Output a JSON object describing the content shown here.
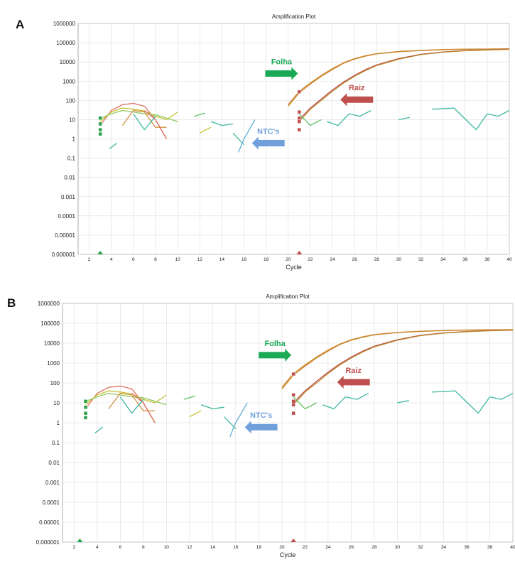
{
  "colors": {
    "folha": "#1aaa55",
    "raiz": "#c0504d",
    "ntc": "#6fa0dc",
    "curve": "#d2842a",
    "grid": "#dcdcdc",
    "threshold": "#2aa24a"
  },
  "chart_data": [
    {
      "panel_label": "A",
      "type": "line",
      "title": "Amplification Plot",
      "xlabel": "Cycle",
      "ylabel": "",
      "y_scale": "log",
      "xlim": [
        1,
        40
      ],
      "ylim": [
        1e-06,
        1000000
      ],
      "x_ticks": [
        2,
        4,
        6,
        8,
        10,
        12,
        14,
        16,
        18,
        20,
        22,
        24,
        26,
        28,
        30,
        32,
        34,
        36,
        38,
        40
      ],
      "y_ticks": [
        "1000000",
        "100000",
        "10000",
        "1000",
        "100",
        "10",
        "1",
        "0.1",
        "0.01",
        "0.001",
        "0.0001",
        "0.00001",
        "0.000001"
      ],
      "grid": true,
      "annotations": [
        {
          "text": "Folha",
          "arrow": "right",
          "color": "folha",
          "x": 19.4,
          "y": 2500
        },
        {
          "text": "Raiz",
          "arrow": "left",
          "color": "raiz",
          "x": 26.2,
          "y": 110
        },
        {
          "text": "NTC's",
          "arrow": "left",
          "color": "ntc",
          "x": 18.2,
          "y": 0.6
        }
      ],
      "series": [
        {
          "color": "#d2842a",
          "x": [
            20,
            21,
            22,
            23,
            24,
            25,
            26,
            27,
            28,
            30,
            32,
            34,
            36,
            38,
            40
          ],
          "y": [
            60,
            300,
            800,
            2000,
            4500,
            9000,
            15000,
            21000,
            27000,
            35000,
            40000,
            44000,
            46000,
            47000,
            48000
          ]
        },
        {
          "color": "#c98a30",
          "x": [
            20,
            21,
            22,
            23,
            24,
            25,
            26,
            27,
            28,
            30,
            32,
            34,
            36,
            38,
            40
          ],
          "y": [
            50,
            250,
            700,
            1800,
            4000,
            8500,
            14000,
            20000,
            26000,
            34000,
            39000,
            43000,
            45500,
            46500,
            47500
          ]
        },
        {
          "color": "#c0504d",
          "x": [
            21,
            22,
            23,
            24,
            25,
            26,
            27,
            28,
            30,
            32,
            34,
            36,
            38,
            40
          ],
          "y": [
            10,
            40,
            120,
            350,
            900,
            2000,
            4000,
            7000,
            15000,
            25000,
            33000,
            39000,
            43000,
            46000
          ]
        },
        {
          "color": "#b8862a",
          "x": [
            21,
            22,
            23,
            24,
            25,
            26,
            27,
            28,
            30,
            32,
            34,
            36,
            38,
            40
          ],
          "y": [
            8,
            35,
            100,
            300,
            800,
            1800,
            3600,
            6500,
            14000,
            24000,
            32000,
            38000,
            42000,
            45000
          ]
        },
        {
          "color": "#e07060",
          "x": [
            3,
            4,
            5,
            6,
            7,
            8,
            9
          ],
          "y": [
            5,
            30,
            60,
            70,
            50,
            10,
            1
          ]
        },
        {
          "color": "#c8c030",
          "x": [
            3,
            4,
            5,
            6,
            7,
            8,
            9,
            10
          ],
          "y": [
            8,
            25,
            40,
            35,
            28,
            15,
            10,
            25
          ]
        },
        {
          "color": "#90c860",
          "x": [
            3,
            4,
            5,
            6,
            7,
            8,
            9,
            10
          ],
          "y": [
            12,
            20,
            30,
            25,
            20,
            18,
            12,
            8
          ]
        },
        {
          "color": "#d09040",
          "x": [
            5,
            6,
            7,
            8,
            9
          ],
          "y": [
            5,
            30,
            25,
            4,
            4
          ]
        },
        {
          "color": "#e07060",
          "x": [
            7,
            8,
            9
          ],
          "y": [
            30,
            10,
            1
          ]
        },
        {
          "color": "#40b8a0",
          "x": [
            3.8,
            4.5
          ],
          "y": [
            0.3,
            0.6
          ]
        },
        {
          "color": "#40b8a0",
          "x": [
            6,
            7,
            8
          ],
          "y": [
            20,
            3,
            15
          ]
        },
        {
          "color": "#60c060",
          "x": [
            11.5,
            12.5
          ],
          "y": [
            15,
            22
          ]
        },
        {
          "color": "#c8c030",
          "x": [
            12,
            13
          ],
          "y": [
            2,
            4
          ]
        },
        {
          "color": "#40b8a0",
          "x": [
            13,
            14,
            15
          ],
          "y": [
            8,
            5,
            6
          ]
        },
        {
          "color": "#40b8a0",
          "x": [
            15,
            16
          ],
          "y": [
            2,
            0.5
          ]
        },
        {
          "color": "#60b0d8",
          "x": [
            15.5,
            16,
            17
          ],
          "y": [
            0.2,
            1,
            10
          ]
        },
        {
          "color": "#60c060",
          "x": [
            21,
            22,
            23
          ],
          "y": [
            20,
            5,
            10
          ]
        },
        {
          "color": "#40b8a0",
          "x": [
            23.5,
            24.5,
            25.5,
            26.5,
            27.5
          ],
          "y": [
            8,
            5,
            20,
            15,
            30
          ]
        },
        {
          "color": "#40b8a0",
          "x": [
            30,
            31
          ],
          "y": [
            10,
            13
          ]
        },
        {
          "color": "#40b8a0",
          "x": [
            33,
            35,
            37,
            38,
            39,
            40
          ],
          "y": [
            35,
            40,
            3,
            20,
            15,
            30
          ]
        }
      ],
      "threshold_markers": [
        {
          "x": 3,
          "y": [
            12,
            6,
            3,
            1.8
          ],
          "color": "threshold"
        },
        {
          "x": 21,
          "y": [
            280,
            25,
            12,
            8,
            3
          ],
          "color": "raiz"
        }
      ],
      "axis_triangles": [
        {
          "x": 3,
          "color": "threshold"
        },
        {
          "x": 21,
          "color": "raiz"
        }
      ]
    },
    {
      "panel_label": "B",
      "type": "line",
      "title": "Amplification Plot",
      "xlabel": "Cycle",
      "ylabel": "",
      "y_scale": "log",
      "xlim": [
        1,
        40
      ],
      "ylim": [
        1e-06,
        1000000
      ],
      "x_ticks": [
        2,
        4,
        6,
        8,
        10,
        12,
        14,
        16,
        18,
        20,
        22,
        24,
        26,
        28,
        30,
        32,
        34,
        36,
        38,
        40
      ],
      "y_ticks": [
        "1000000",
        "100000",
        "10000",
        "1000",
        "100",
        "10",
        "1",
        "0.1",
        "0.01",
        "0.001",
        "0.0001",
        "0.00001",
        "0.000001"
      ],
      "grid": true,
      "annotations": [
        {
          "text": "Folha",
          "arrow": "right",
          "color": "folha",
          "x": 19.4,
          "y": 2500
        },
        {
          "text": "Raiz",
          "arrow": "left",
          "color": "raiz",
          "x": 26.2,
          "y": 110
        },
        {
          "text": "NTC's",
          "arrow": "left",
          "color": "ntc",
          "x": 18.2,
          "y": 0.6
        }
      ],
      "series": [
        {
          "color": "#d2842a",
          "x": [
            20,
            21,
            22,
            23,
            24,
            25,
            26,
            27,
            28,
            30,
            32,
            34,
            36,
            38,
            40
          ],
          "y": [
            60,
            300,
            800,
            2000,
            4500,
            9000,
            15000,
            21000,
            27000,
            35000,
            40000,
            44000,
            46000,
            47000,
            48000
          ]
        },
        {
          "color": "#c98a30",
          "x": [
            20,
            21,
            22,
            23,
            24,
            25,
            26,
            27,
            28,
            30,
            32,
            34,
            36,
            38,
            40
          ],
          "y": [
            50,
            250,
            700,
            1800,
            4000,
            8500,
            14000,
            20000,
            26000,
            34000,
            39000,
            43000,
            45500,
            46500,
            47500
          ]
        },
        {
          "color": "#c0504d",
          "x": [
            21,
            22,
            23,
            24,
            25,
            26,
            27,
            28,
            30,
            32,
            34,
            36,
            38,
            40
          ],
          "y": [
            10,
            40,
            120,
            350,
            900,
            2000,
            4000,
            7000,
            15000,
            25000,
            33000,
            39000,
            43000,
            46000
          ]
        },
        {
          "color": "#b8862a",
          "x": [
            21,
            22,
            23,
            24,
            25,
            26,
            27,
            28,
            30,
            32,
            34,
            36,
            38,
            40
          ],
          "y": [
            8,
            35,
            100,
            300,
            800,
            1800,
            3600,
            6500,
            14000,
            24000,
            32000,
            38000,
            42000,
            45000
          ]
        },
        {
          "color": "#e07060",
          "x": [
            3,
            4,
            5,
            6,
            7,
            8,
            9
          ],
          "y": [
            5,
            30,
            60,
            70,
            50,
            10,
            1
          ]
        },
        {
          "color": "#c8c030",
          "x": [
            3,
            4,
            5,
            6,
            7,
            8,
            9,
            10
          ],
          "y": [
            8,
            25,
            40,
            35,
            28,
            15,
            10,
            25
          ]
        },
        {
          "color": "#90c860",
          "x": [
            3,
            4,
            5,
            6,
            7,
            8,
            9,
            10
          ],
          "y": [
            12,
            20,
            30,
            25,
            20,
            18,
            12,
            8
          ]
        },
        {
          "color": "#d09040",
          "x": [
            5,
            6,
            7,
            8,
            9
          ],
          "y": [
            5,
            30,
            25,
            4,
            4
          ]
        },
        {
          "color": "#e07060",
          "x": [
            7,
            8,
            9
          ],
          "y": [
            30,
            10,
            1
          ]
        },
        {
          "color": "#40b8a0",
          "x": [
            3.8,
            4.5
          ],
          "y": [
            0.3,
            0.6
          ]
        },
        {
          "color": "#40b8a0",
          "x": [
            6,
            7,
            8
          ],
          "y": [
            20,
            3,
            15
          ]
        },
        {
          "color": "#60c060",
          "x": [
            11.5,
            12.5
          ],
          "y": [
            15,
            22
          ]
        },
        {
          "color": "#c8c030",
          "x": [
            12,
            13
          ],
          "y": [
            2,
            4
          ]
        },
        {
          "color": "#40b8a0",
          "x": [
            13,
            14,
            15
          ],
          "y": [
            8,
            5,
            6
          ]
        },
        {
          "color": "#40b8a0",
          "x": [
            15,
            16
          ],
          "y": [
            2,
            0.5
          ]
        },
        {
          "color": "#60b0d8",
          "x": [
            15.5,
            16,
            17
          ],
          "y": [
            0.2,
            1,
            10
          ]
        },
        {
          "color": "#60c060",
          "x": [
            21,
            22,
            23
          ],
          "y": [
            20,
            5,
            10
          ]
        },
        {
          "color": "#40b8a0",
          "x": [
            23.5,
            24.5,
            25.5,
            26.5,
            27.5
          ],
          "y": [
            8,
            5,
            20,
            15,
            30
          ]
        },
        {
          "color": "#40b8a0",
          "x": [
            30,
            31
          ],
          "y": [
            10,
            13
          ]
        },
        {
          "color": "#40b8a0",
          "x": [
            33,
            35,
            37,
            38,
            39,
            40
          ],
          "y": [
            35,
            40,
            3,
            20,
            15,
            30
          ]
        }
      ],
      "threshold_markers": [
        {
          "x": 3,
          "y": [
            12,
            6,
            3,
            1.8
          ],
          "color": "threshold"
        },
        {
          "x": 21,
          "y": [
            280,
            25,
            12,
            8,
            3
          ],
          "color": "raiz"
        }
      ],
      "axis_triangles": [
        {
          "x": 2.5,
          "color": "threshold"
        },
        {
          "x": 21,
          "color": "raiz"
        }
      ]
    }
  ]
}
